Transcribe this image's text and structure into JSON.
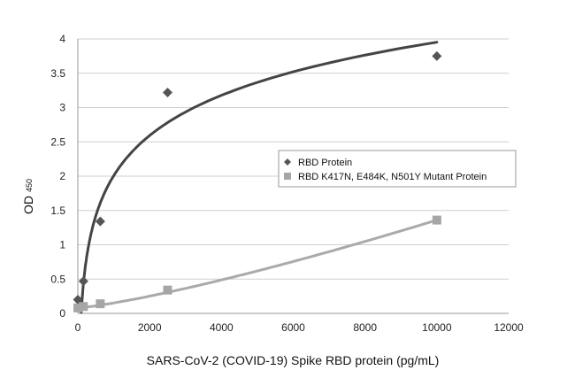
{
  "chart_data": {
    "type": "scatter",
    "title": "",
    "xlabel": "SARS-CoV-2 (COVID-19) Spike RBD protein (pg/mL)",
    "ylabel": "OD",
    "ylabel_sub": "450",
    "xlim": [
      0,
      12000
    ],
    "ylim": [
      0,
      4
    ],
    "xticks": [
      0,
      2000,
      4000,
      6000,
      8000,
      10000,
      12000
    ],
    "yticks": [
      0,
      0.5,
      1,
      1.5,
      2,
      2.5,
      3,
      3.5,
      4
    ],
    "grid": "horizontal",
    "legend_position": "center-right",
    "series": [
      {
        "name": "RBD Protein",
        "marker": "diamond",
        "color": "#555555",
        "trend_color": "#444444",
        "x": [
          0,
          156,
          625,
          2500,
          10000
        ],
        "y": [
          0.2,
          0.47,
          1.34,
          3.22,
          3.75
        ],
        "trendline": "log"
      },
      {
        "name": "RBD K417N, E484K, N501Y Mutant Protein",
        "marker": "square",
        "color": "#a6a6a6",
        "trend_color": "#aaaaaa",
        "x": [
          0,
          156,
          625,
          2500,
          10000
        ],
        "y": [
          0.08,
          0.1,
          0.14,
          0.34,
          1.36
        ],
        "trendline": "power"
      }
    ]
  }
}
